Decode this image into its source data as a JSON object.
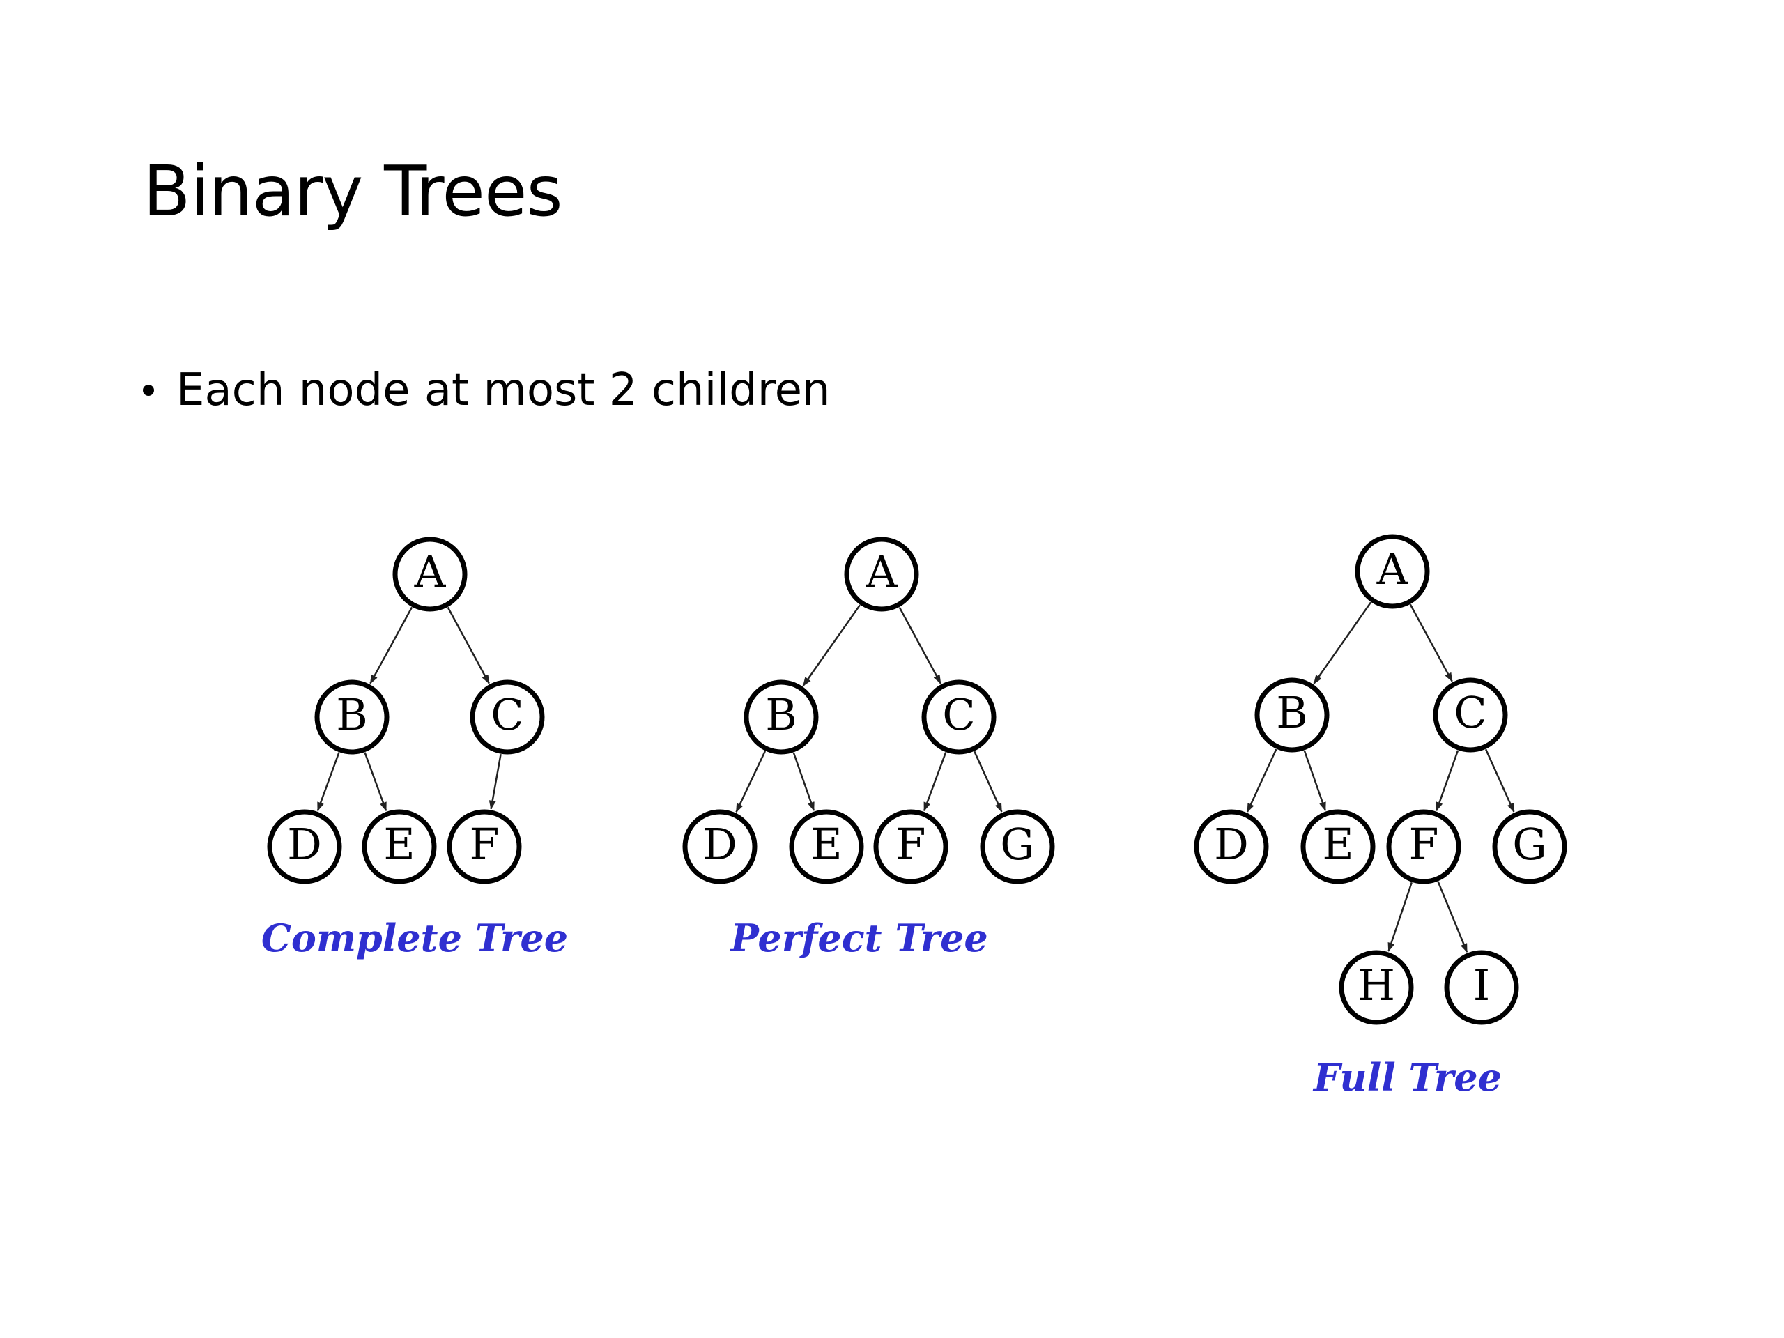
{
  "slide": {
    "title": "Binary Trees",
    "bullets": [
      "Each node at most 2 children"
    ]
  },
  "colors": {
    "caption": "#2f2fd0",
    "node_stroke": "#000000",
    "edge": "#222222"
  },
  "trees": [
    {
      "caption": "Complete Tree",
      "nodes": [
        "A",
        "B",
        "C",
        "D",
        "E",
        "F"
      ],
      "edges": [
        [
          "A",
          "B"
        ],
        [
          "A",
          "C"
        ],
        [
          "B",
          "D"
        ],
        [
          "B",
          "E"
        ],
        [
          "C",
          "F"
        ]
      ]
    },
    {
      "caption": "Perfect Tree",
      "nodes": [
        "A",
        "B",
        "C",
        "D",
        "E",
        "F",
        "G"
      ],
      "edges": [
        [
          "A",
          "B"
        ],
        [
          "A",
          "C"
        ],
        [
          "B",
          "D"
        ],
        [
          "B",
          "E"
        ],
        [
          "C",
          "F"
        ],
        [
          "C",
          "G"
        ]
      ]
    },
    {
      "caption": "Full Tree",
      "nodes": [
        "A",
        "B",
        "C",
        "D",
        "E",
        "F",
        "G",
        "H",
        "I"
      ],
      "edges": [
        [
          "A",
          "B"
        ],
        [
          "A",
          "C"
        ],
        [
          "B",
          "D"
        ],
        [
          "B",
          "E"
        ],
        [
          "C",
          "F"
        ],
        [
          "C",
          "G"
        ],
        [
          "F",
          "H"
        ],
        [
          "F",
          "I"
        ]
      ]
    }
  ]
}
